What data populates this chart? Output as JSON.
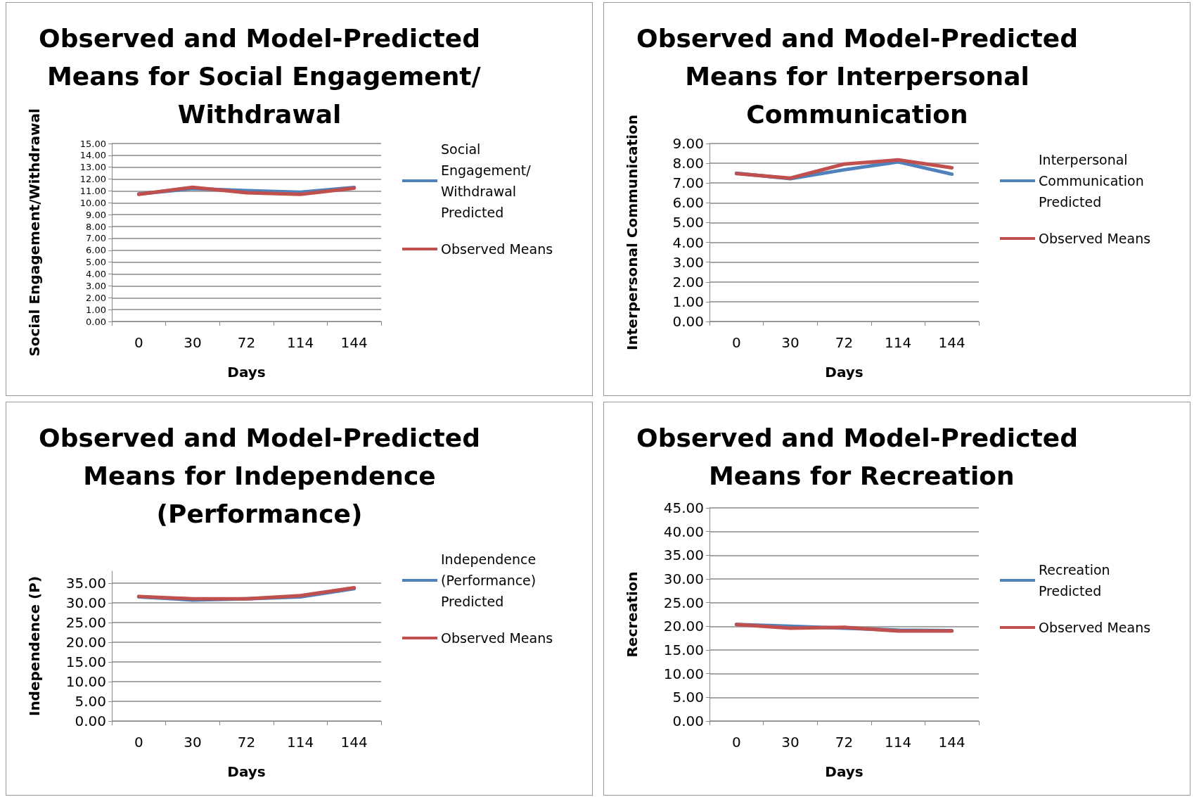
{
  "chart_data": [
    {
      "type": "line",
      "title": "Observed and Model-Predicted Means for Social Engagement/Withdrawal",
      "xlabel": "Days",
      "ylabel": "Social Engagement/Withdrawal",
      "categories": [
        "0",
        "30",
        "72",
        "114",
        "144"
      ],
      "series": [
        {
          "name": "Social Engagement/Withdrawal Predicted",
          "color": "#4f81bd",
          "values": [
            10.75,
            11.2,
            11.03,
            10.9,
            11.3
          ]
        },
        {
          "name": "Observed Means",
          "color": "#c0504d",
          "values": [
            10.72,
            11.31,
            10.85,
            10.72,
            11.23
          ]
        }
      ],
      "ylim": [
        0,
        15
      ],
      "yticks": [
        {
          "value": 0,
          "label": "0.00"
        },
        {
          "value": 1,
          "label": "1.00"
        },
        {
          "value": 2,
          "label": "2.00"
        },
        {
          "value": 3,
          "label": "3.00"
        },
        {
          "value": 4,
          "label": "4.00"
        },
        {
          "value": 5,
          "label": "5.00"
        },
        {
          "value": 6,
          "label": "6.00"
        },
        {
          "value": 7,
          "label": "7.00"
        },
        {
          "value": 8,
          "label": "8.00"
        },
        {
          "value": 9,
          "label": "9.00"
        },
        {
          "value": 10,
          "label": "10.00"
        },
        {
          "value": 11,
          "label": "11.00"
        },
        {
          "value": 12,
          "label": "12.00"
        },
        {
          "value": 13,
          "label": "13.00"
        },
        {
          "value": 14,
          "label": "14.00"
        },
        {
          "value": 15,
          "label": "15.00"
        }
      ],
      "grid": "y",
      "legend": "right",
      "marker": "none"
    },
    {
      "type": "line",
      "title": "Observed and Model-Predicted Means for Interpersonal Communication",
      "xlabel": "Days",
      "ylabel": "Interpersonal Communication",
      "categories": [
        "0",
        "30",
        "72",
        "114",
        "144"
      ],
      "series": [
        {
          "name": "Interpersonal Communication Predicted",
          "color": "#4f81bd",
          "values": [
            7.5,
            7.22,
            7.67,
            8.07,
            7.45
          ]
        },
        {
          "name": "Observed Means",
          "color": "#c0504d",
          "values": [
            7.48,
            7.25,
            7.96,
            8.17,
            7.77
          ]
        }
      ],
      "ylim": [
        0,
        9
      ],
      "yticks": [
        {
          "value": 0,
          "label": "0.00"
        },
        {
          "value": 1,
          "label": "1.00"
        },
        {
          "value": 2,
          "label": "2.00"
        },
        {
          "value": 3,
          "label": "3.00"
        },
        {
          "value": 4,
          "label": "4.00"
        },
        {
          "value": 5,
          "label": "5.00"
        },
        {
          "value": 6,
          "label": "6.00"
        },
        {
          "value": 7,
          "label": "7.00"
        },
        {
          "value": 8,
          "label": "8.00"
        },
        {
          "value": 9,
          "label": "9.00"
        }
      ],
      "grid": "y",
      "legend": "right",
      "marker": "none"
    },
    {
      "type": "line",
      "title": "Observed and Model-Predicted Means for Independence (Performance)",
      "xlabel": "Days",
      "ylabel": "Independence (P)",
      "categories": [
        "0",
        "30",
        "72",
        "114",
        "144"
      ],
      "series": [
        {
          "name": "Independence (Performance) Predicted",
          "color": "#4f81bd",
          "values": [
            31.5,
            30.7,
            31.0,
            31.5,
            33.6
          ]
        },
        {
          "name": "Observed Means",
          "color": "#c0504d",
          "values": [
            31.6,
            31.0,
            31.0,
            31.8,
            33.8
          ]
        }
      ],
      "ylim": [
        0,
        38
      ],
      "yticks": [
        {
          "value": 0,
          "label": "0.00"
        },
        {
          "value": 5,
          "label": "5.00"
        },
        {
          "value": 10,
          "label": "10.00"
        },
        {
          "value": 15,
          "label": "15.00"
        },
        {
          "value": 20,
          "label": "20.00"
        },
        {
          "value": 25,
          "label": "25.00"
        },
        {
          "value": 30,
          "label": "30.00"
        },
        {
          "value": 35,
          "label": "35.00"
        }
      ],
      "grid": "y",
      "legend": "right",
      "marker": "none"
    },
    {
      "type": "line",
      "title": "Observed and Model-Predicted Means for Recreation",
      "xlabel": "Days",
      "ylabel": "Recreation",
      "categories": [
        "0",
        "30",
        "72",
        "114",
        "144"
      ],
      "series": [
        {
          "name": "Recreation Predicted",
          "color": "#4f81bd",
          "values": [
            20.4,
            20.0,
            19.6,
            19.2,
            19.1
          ]
        },
        {
          "name": "Observed Means",
          "color": "#c0504d",
          "values": [
            20.4,
            19.6,
            19.8,
            19.0,
            19.0
          ]
        }
      ],
      "ylim": [
        0,
        45
      ],
      "yticks": [
        {
          "value": 0,
          "label": "0.00"
        },
        {
          "value": 5,
          "label": "5.00"
        },
        {
          "value": 10,
          "label": "10.00"
        },
        {
          "value": 15,
          "label": "15.00"
        },
        {
          "value": 20,
          "label": "20.00"
        },
        {
          "value": 25,
          "label": "25.00"
        },
        {
          "value": 30,
          "label": "30.00"
        },
        {
          "value": 35,
          "label": "35.00"
        },
        {
          "value": 40,
          "label": "40.00"
        },
        {
          "value": 45,
          "label": "45.00"
        }
      ],
      "grid": "y",
      "legend": "right",
      "marker": "none"
    }
  ]
}
